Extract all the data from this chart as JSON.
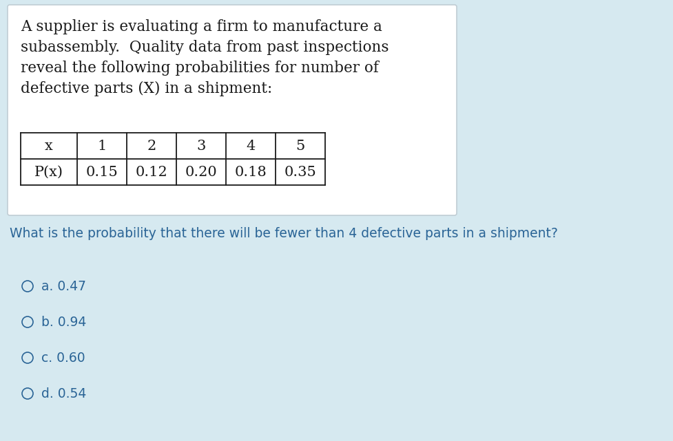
{
  "bg_color": "#d6e9f0",
  "card_color": "#ffffff",
  "card_border_color": "#c0cdd4",
  "text_color_black": "#1a1a1a",
  "text_color_teal": "#2a6496",
  "paragraph_text_lines": [
    "A supplier is evaluating a firm to manufacture a",
    "subassembly.  Quality data from past inspections",
    "reveal the following probabilities for number of",
    "defective parts (X) in a shipment:"
  ],
  "table_headers": [
    "x",
    "1",
    "2",
    "3",
    "4",
    "5"
  ],
  "table_row2": [
    "P(x)",
    "0.15",
    "0.12",
    "0.20",
    "0.18",
    "0.35"
  ],
  "question_text": "What is the probability that there will be fewer than 4 defective parts in a shipment?",
  "choices": [
    "a. 0.47",
    "b. 0.94",
    "c. 0.60",
    "d. 0.54"
  ],
  "para_fontsize": 15.5,
  "table_fontsize": 15.0,
  "question_fontsize": 13.5,
  "choices_fontsize": 13.5
}
